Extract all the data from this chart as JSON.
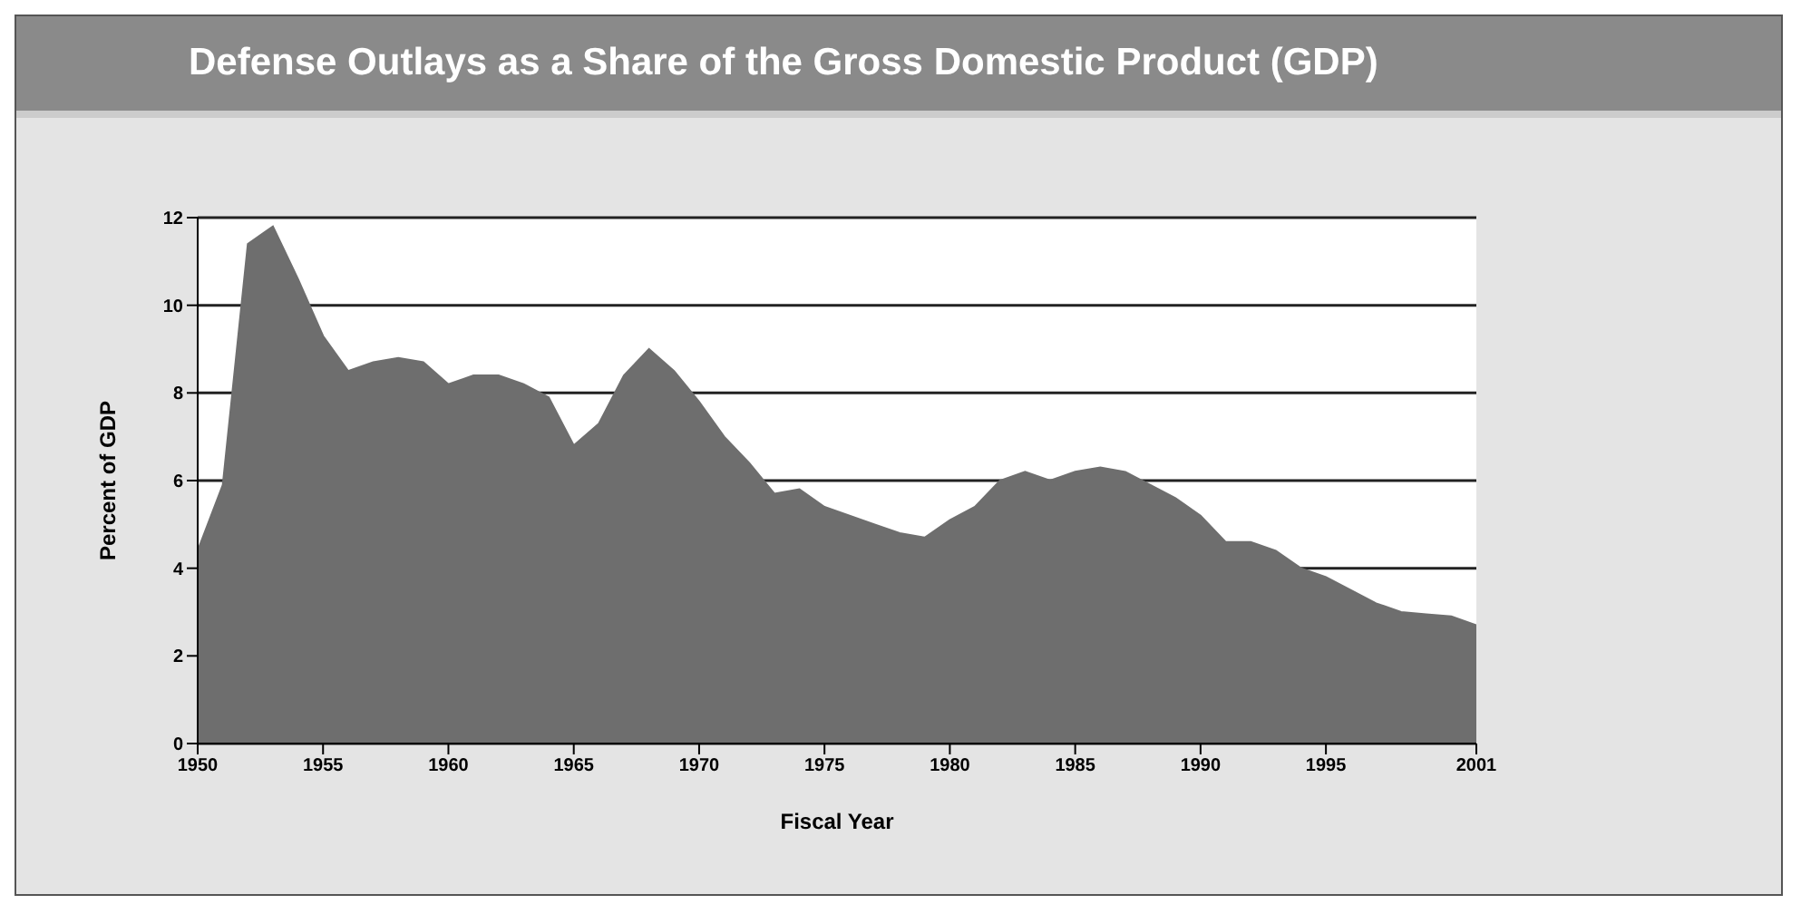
{
  "chart_data": {
    "type": "area",
    "title": "Defense Outlays as a Share of the Gross Domestic Product (GDP)",
    "xlabel": "Fiscal Year",
    "ylabel": "Percent of GDP",
    "x": [
      1950,
      1951,
      1952,
      1953,
      1954,
      1955,
      1956,
      1957,
      1958,
      1959,
      1960,
      1961,
      1962,
      1963,
      1964,
      1965,
      1966,
      1967,
      1968,
      1969,
      1970,
      1971,
      1972,
      1973,
      1974,
      1975,
      1976,
      1977,
      1978,
      1979,
      1980,
      1981,
      1982,
      1983,
      1984,
      1985,
      1986,
      1987,
      1988,
      1989,
      1990,
      1991,
      1992,
      1993,
      1994,
      1995,
      1996,
      1997,
      1998,
      1999,
      2000,
      2001
    ],
    "series": [
      {
        "color": "#6e6e6e",
        "values": [
          4.4,
          5.9,
          11.4,
          11.8,
          10.6,
          9.3,
          8.5,
          8.7,
          8.8,
          8.7,
          8.2,
          8.4,
          8.4,
          8.2,
          7.9,
          6.8,
          7.3,
          8.4,
          9.0,
          8.5,
          7.8,
          7.0,
          6.4,
          5.7,
          5.8,
          5.4,
          5.2,
          5.0,
          4.8,
          4.7,
          5.1,
          5.4,
          6.0,
          6.2,
          6.0,
          6.2,
          6.3,
          6.2,
          5.9,
          5.6,
          5.2,
          4.6,
          4.6,
          4.4,
          4.0,
          3.8,
          3.5,
          3.2,
          3.0,
          2.95,
          2.9,
          2.7
        ]
      }
    ],
    "xlim": [
      1950,
      2001
    ],
    "xticks": [
      1950,
      1955,
      1960,
      1965,
      1970,
      1975,
      1980,
      1985,
      1990,
      1995,
      2001
    ],
    "ylim": [
      0,
      12
    ],
    "yticks": [
      0,
      2,
      4,
      6,
      8,
      10,
      12
    ],
    "grid": "y",
    "legend": false
  }
}
